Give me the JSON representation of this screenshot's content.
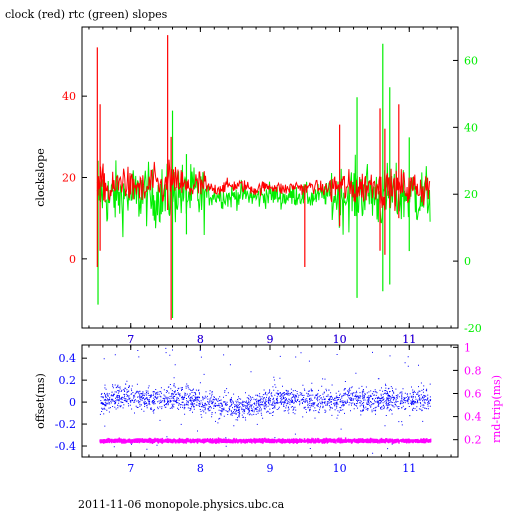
{
  "title": "clock (red) rtc (green) slopes",
  "footer": "2011-11-06  monopole.physics.ubc.ca",
  "colors": {
    "red": "#ff0000",
    "green": "#00ee00",
    "blue": "#0000ff",
    "magenta": "#ff00ff",
    "frame": "#000000"
  },
  "chart_data": [
    {
      "type": "line",
      "title": "clock (red) rtc (green) slopes",
      "ylabel": "clockslope",
      "xlim": [
        6.3,
        11.7
      ],
      "ylim": [
        -17,
        57
      ],
      "y2lim": [
        -20,
        70
      ],
      "x_ticks": [
        7,
        8,
        9,
        10,
        11
      ],
      "y_ticks": [
        0,
        20,
        40
      ],
      "y2_ticks": [
        -20,
        0,
        20,
        40,
        60
      ],
      "grid": false,
      "series": [
        {
          "name": "clock",
          "color": "#ff0000",
          "axis": "left",
          "x": [
            6.52,
            6.6,
            6.7,
            6.8,
            6.9,
            7.0,
            7.1,
            7.2,
            7.3,
            7.4,
            7.5,
            7.55,
            7.6,
            7.7,
            7.8,
            7.9,
            8.0,
            8.2,
            8.4,
            8.6,
            8.8,
            9.0,
            9.2,
            9.4,
            9.5,
            9.6,
            9.8,
            10.0,
            10.2,
            10.4,
            10.55,
            10.6,
            10.7,
            10.8,
            10.9,
            11.0,
            11.1,
            11.2,
            11.3
          ],
          "values": [
            17,
            19,
            16,
            18,
            20,
            17,
            18,
            16,
            19,
            18,
            17,
            21,
            18,
            19,
            17,
            18,
            18,
            17,
            18,
            18,
            17,
            18,
            17,
            18,
            17,
            18,
            17,
            18,
            17,
            18,
            19,
            16,
            18,
            17,
            18,
            17,
            18,
            17,
            18
          ],
          "spikes": [
            {
              "x": 6.52,
              "low": -2,
              "high": 52
            },
            {
              "x": 6.56,
              "low": 2,
              "high": 38
            },
            {
              "x": 7.53,
              "low": 12,
              "high": 55
            },
            {
              "x": 7.58,
              "low": -15,
              "high": 30
            },
            {
              "x": 9.5,
              "low": -2,
              "high": 18
            },
            {
              "x": 10.0,
              "low": 8,
              "high": 33
            },
            {
              "x": 10.58,
              "low": 2,
              "high": 37
            },
            {
              "x": 10.65,
              "low": 1,
              "high": 32
            },
            {
              "x": 10.85,
              "low": 10,
              "high": 38
            }
          ]
        },
        {
          "name": "rtc",
          "color": "#00ee00",
          "axis": "right",
          "x": [
            6.52,
            6.6,
            6.7,
            6.8,
            6.9,
            7.0,
            7.1,
            7.2,
            7.3,
            7.4,
            7.5,
            7.6,
            7.7,
            7.8,
            7.9,
            8.0,
            8.2,
            8.4,
            8.6,
            8.8,
            9.0,
            9.2,
            9.4,
            9.6,
            9.8,
            10.0,
            10.2,
            10.4,
            10.6,
            10.7,
            10.8,
            11.0,
            11.2,
            11.3
          ],
          "values": [
            19,
            21,
            18,
            20,
            19,
            20,
            19,
            21,
            18,
            20,
            19,
            20,
            21,
            19,
            20,
            19,
            20,
            19,
            20,
            19,
            20,
            19,
            20,
            19,
            20,
            19,
            20,
            21,
            18,
            20,
            19,
            20,
            19,
            20
          ],
          "spikes": [
            {
              "x": 6.53,
              "low": -13,
              "high": 30
            },
            {
              "x": 7.6,
              "low": -17,
              "high": 45
            },
            {
              "x": 7.8,
              "low": 8,
              "high": 32
            },
            {
              "x": 10.25,
              "low": -11,
              "high": 49
            },
            {
              "x": 10.62,
              "low": -9,
              "high": 65
            },
            {
              "x": 10.72,
              "low": -7,
              "high": 52
            },
            {
              "x": 11.0,
              "low": 3,
              "high": 37
            }
          ]
        }
      ]
    },
    {
      "type": "scatter",
      "ylabel": "offset(ms)",
      "y2label": "rnd-trip(ms)",
      "xlim": [
        6.3,
        11.7
      ],
      "ylim": [
        -0.5,
        0.52
      ],
      "y2lim": [
        0.05,
        1.02
      ],
      "x_ticks": [
        7,
        8,
        9,
        10,
        11
      ],
      "y_ticks": [
        -0.4,
        -0.2,
        0,
        0.2,
        0.4
      ],
      "y_tick_labels": [
        "-0.4",
        "-0.2",
        "0",
        "0.2",
        "0.4"
      ],
      "y2_ticks": [
        0.2,
        0.4,
        0.6,
        0.8,
        1
      ],
      "y2_tick_labels": [
        "0.2",
        "0.4",
        "0.6",
        "0.8",
        "1"
      ],
      "grid": false,
      "series": [
        {
          "name": "offset",
          "color": "#0000ff",
          "axis": "left",
          "x": [
            6.55,
            6.8,
            7.0,
            7.2,
            7.4,
            7.6,
            7.8,
            8.0,
            8.2,
            8.4,
            8.6,
            8.8,
            9.0,
            9.2,
            9.4,
            9.6,
            9.8,
            10.0,
            10.2,
            10.4,
            10.6,
            10.8,
            11.0,
            11.2,
            11.3
          ],
          "values": [
            0.0,
            0.05,
            0.05,
            0.02,
            0.03,
            0.05,
            0.04,
            0.0,
            -0.03,
            -0.03,
            -0.05,
            -0.03,
            0.0,
            0.03,
            0.04,
            0.02,
            0.0,
            0.0,
            0.05,
            0.0,
            0.02,
            0.03,
            0.02,
            0.02,
            0.02
          ],
          "spread": 0.2
        },
        {
          "name": "rnd-trip",
          "color": "#ff00ff",
          "axis": "right",
          "x": [
            6.55,
            7.0,
            7.5,
            8.0,
            8.5,
            9.0,
            9.5,
            10.0,
            10.5,
            11.0,
            11.3
          ],
          "values": [
            0.19,
            0.19,
            0.19,
            0.19,
            0.19,
            0.19,
            0.19,
            0.19,
            0.19,
            0.19,
            0.19
          ],
          "spread": 0.015
        }
      ]
    }
  ]
}
